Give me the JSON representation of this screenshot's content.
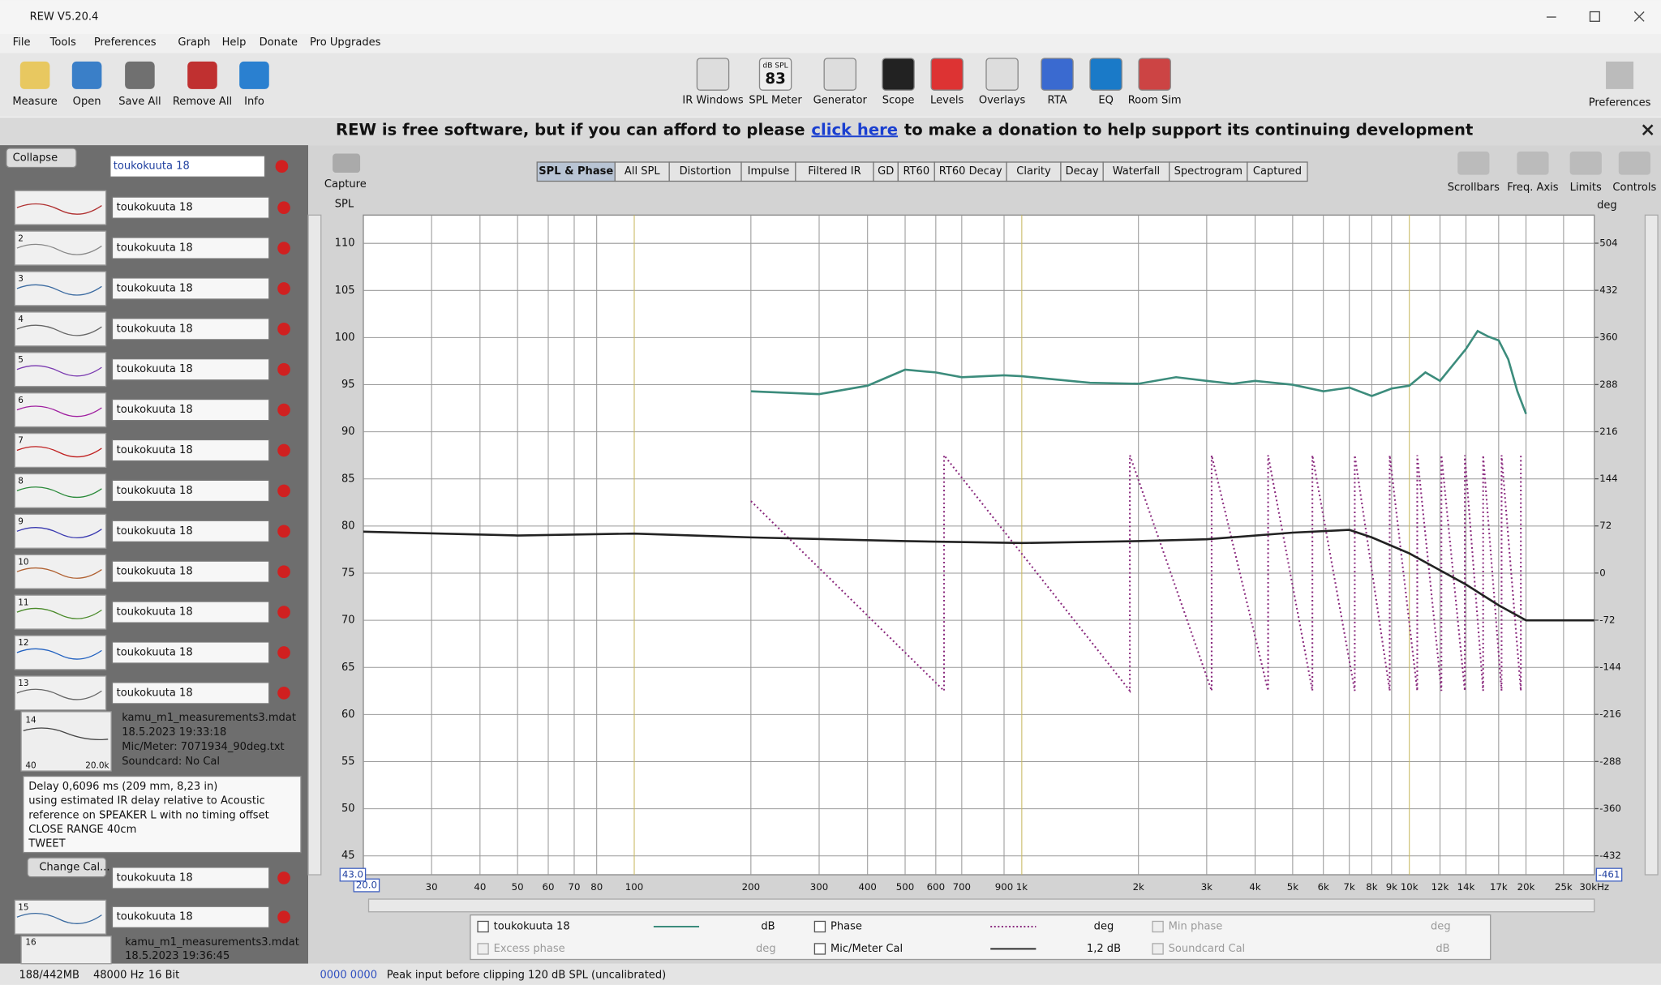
{
  "window": {
    "title": "REW V5.20.4"
  },
  "menu": [
    "File",
    "Tools",
    "Preferences",
    "Graph",
    "Help",
    "Donate",
    "Pro Upgrades"
  ],
  "toolbar_left": [
    "Measure",
    "Open",
    "Save All",
    "Remove All",
    "Info"
  ],
  "toolbar_center": [
    "IR Windows",
    "SPL Meter",
    "Generator",
    "Scope",
    "Levels",
    "Overlays",
    "RTA",
    "EQ",
    "Room Sim"
  ],
  "spl_meter_icon": {
    "unit": "dB SPL",
    "reading": 83
  },
  "toolbar_right": [
    "Preferences"
  ],
  "banner": {
    "before": "REW is free software, but if you can afford to please",
    "link": "click here",
    "after": "to make a donation to help support its continuing development"
  },
  "sidebar": {
    "collapse": "Collapse",
    "selected": "toukokuuta 18",
    "measurements": [
      {
        "name": "toukokuuta 18"
      },
      {
        "number": 2,
        "name": "toukokuuta 18"
      },
      {
        "number": 3,
        "name": "toukokuuta 18"
      },
      {
        "number": 4,
        "name": "toukokuuta 18"
      },
      {
        "number": 5,
        "name": "toukokuuta 18"
      },
      {
        "number": 6,
        "name": "toukokuuta 18"
      },
      {
        "number": 7,
        "name": "toukokuuta 18"
      },
      {
        "number": 8,
        "name": "toukokuuta 18"
      },
      {
        "number": 9,
        "name": "toukokuuta 18"
      },
      {
        "number": 10,
        "name": "toukokuuta 18"
      },
      {
        "number": 11,
        "name": "toukokuuta 18"
      },
      {
        "number": 12,
        "name": "toukokuuta 18"
      },
      {
        "number": 13,
        "name": "toukokuuta 18"
      },
      {
        "number": 14,
        "name": "toukokuuta 18",
        "file": "kamu_m1_measurements3.mdat",
        "date": "18.5.2023 19:33:18",
        "mic": "Mic/Meter: 7071934_90deg.txt",
        "soundcard": "Soundcard: No Cal",
        "thumb_low": "40",
        "thumb_high": "20.0k",
        "notes": [
          "Delay 0,6096 ms (209 mm, 8,23 in)",
          "using estimated IR delay relative to Acoustic",
          "reference on SPEAKER L with no timing offset",
          "CLOSE RANGE 40cm",
          "TWEET"
        ],
        "button": "Change Cal..."
      },
      {
        "number": 15,
        "name": "toukokuuta 18"
      },
      {
        "number": 16,
        "file": "kamu_m1_measurements3.mdat",
        "date": "18.5.2023 19:36:45"
      }
    ]
  },
  "graph": {
    "capture": "Capture",
    "tabs": [
      "SPL & Phase",
      "All SPL",
      "Distortion",
      "Impulse",
      "Filtered IR",
      "GD",
      "RT60",
      "RT60 Decay",
      "Clarity",
      "Decay",
      "Waterfall",
      "Spectrogram",
      "Captured"
    ],
    "tools": [
      "Scrollbars",
      "Freq. Axis",
      "Limits",
      "Controls"
    ]
  },
  "chart_data": {
    "type": "line",
    "y_label": "SPL",
    "y2_label": "deg",
    "log_x": true,
    "grid": true,
    "axis_end_labels": {
      "x": "20.0",
      "y": "43.0",
      "y2": "-461"
    },
    "xlim": [
      20,
      30000
    ],
    "ylim": [
      43,
      113
    ],
    "y2lim": [
      -461,
      547
    ],
    "xticks": [
      30,
      40,
      50,
      60,
      70,
      80,
      100,
      200,
      300,
      400,
      500,
      600,
      700,
      900,
      {
        "value": 1000,
        "label": "1k"
      },
      {
        "value": 2000,
        "label": "2k"
      },
      {
        "value": 3000,
        "label": "3k"
      },
      {
        "value": 4000,
        "label": "4k"
      },
      {
        "value": 5000,
        "label": "5k"
      },
      {
        "value": 6000,
        "label": "6k"
      },
      {
        "value": 7000,
        "label": "7k"
      },
      {
        "value": 8000,
        "label": "8k"
      },
      {
        "value": 9000,
        "label": "9k"
      },
      {
        "value": 10000,
        "label": "10k"
      },
      {
        "value": 12000,
        "label": "12k"
      },
      {
        "value": 14000,
        "label": "14k"
      },
      {
        "value": 17000,
        "label": "17k"
      },
      {
        "value": 20000,
        "label": "20k"
      },
      {
        "value": 25000,
        "label": "25k"
      },
      {
        "value": 30000,
        "label": "30kHz"
      }
    ],
    "yticks": [
      45,
      50,
      55,
      60,
      65,
      70,
      75,
      80,
      85,
      90,
      95,
      100,
      105,
      110
    ],
    "y2ticks": [
      -432,
      -360,
      -288,
      -216,
      -144,
      -72,
      0,
      72,
      144,
      216,
      288,
      360,
      432,
      504
    ],
    "series": [
      {
        "name": "toukokuuta 18",
        "unit": "dB",
        "color": "#3c8c7c",
        "style": "solid",
        "x": [
          200,
          300,
          400,
          500,
          600,
          700,
          900,
          1000,
          1500,
          2000,
          2500,
          3000,
          3500,
          4000,
          5000,
          6000,
          7000,
          8000,
          9000,
          10000,
          11000,
          12000,
          14000,
          15000,
          16000,
          17000,
          18000,
          19000,
          20000
        ],
        "values": [
          94.3,
          94.0,
          94.9,
          96.6,
          96.3,
          95.8,
          96.0,
          95.9,
          95.2,
          95.1,
          95.8,
          95.4,
          95.1,
          95.4,
          95.0,
          94.3,
          94.7,
          93.8,
          94.6,
          94.9,
          96.3,
          95.4,
          98.8,
          100.7,
          100.1,
          99.7,
          97.7,
          94.3,
          91.9
        ]
      },
      {
        "name": "Phase",
        "unit": "deg",
        "color": "#8a2a7e",
        "style": "dotted",
        "axis": "y2",
        "x": [
          200,
          630,
          630,
          1900,
          1900,
          3090,
          3090,
          4320,
          4320,
          5620,
          5620,
          7230,
          7230,
          8900,
          8900,
          10480,
          10480,
          12100,
          12100,
          13900,
          13900,
          15500,
          15500,
          17300,
          17300,
          19400,
          19400
        ],
        "values": [
          110,
          -180,
          180,
          -180,
          180,
          -180,
          180,
          -180,
          180,
          -180,
          180,
          -180,
          180,
          -180,
          180,
          -180,
          180,
          -180,
          180,
          -180,
          180,
          -180,
          180,
          -180,
          180,
          -180,
          180
        ]
      },
      {
        "name": "Mic/Meter Cal",
        "unit": "1,2 dB",
        "color": "#222222",
        "style": "solid",
        "x": [
          20,
          50,
          100,
          200,
          500,
          1000,
          2000,
          3000,
          5000,
          7000,
          8000,
          10000,
          14000,
          17000,
          20000,
          30000
        ],
        "values": [
          79.4,
          79.0,
          79.2,
          78.8,
          78.4,
          78.2,
          78.4,
          78.6,
          79.3,
          79.6,
          78.8,
          77.1,
          73.8,
          71.6,
          70.0,
          70.0
        ]
      }
    ],
    "legend_disabled": [
      {
        "name": "Min phase",
        "unit": "deg"
      },
      {
        "name": "Excess phase",
        "unit": "deg"
      },
      {
        "name": "Soundcard Cal",
        "unit": "dB"
      }
    ]
  },
  "status": [
    "188/442MB",
    "48000 Hz",
    "16 Bit",
    "0000 0000",
    "Peak input before clipping 120 dB SPL (uncalibrated)"
  ]
}
